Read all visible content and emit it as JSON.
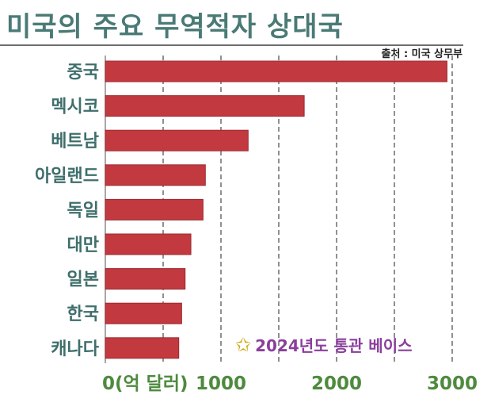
{
  "title": "미국의 주요 무역적자 상대국",
  "source": "출처 : 미국 상무부",
  "note": {
    "icon": "star-outline-icon",
    "text": "2024년도 통관 베이스"
  },
  "colors": {
    "bar": "#c2393f",
    "title": "#4a7a76",
    "category": "#3f6f6c",
    "tick": "#4e8a3e",
    "note": "#8a3f9c"
  },
  "chart_data": {
    "type": "bar",
    "orientation": "horizontal",
    "title": "미국의 주요 무역적자 상대국",
    "categories": [
      "중국",
      "멕시코",
      "베트남",
      "아일랜드",
      "독일",
      "대만",
      "일본",
      "한국",
      "캐나다"
    ],
    "values": [
      2955,
      1720,
      1235,
      865,
      845,
      740,
      690,
      660,
      635
    ],
    "xlim": [
      0,
      3000
    ],
    "xticks": [
      {
        "value": 0,
        "label": "0(억 달러)"
      },
      {
        "value": 1000,
        "label": "1000"
      },
      {
        "value": 2000,
        "label": "2000"
      },
      {
        "value": 3000,
        "label": "3000"
      }
    ],
    "gridlines": [
      500,
      1000,
      1500,
      2000,
      2500,
      3000
    ],
    "grid": "vertical-dashed"
  }
}
